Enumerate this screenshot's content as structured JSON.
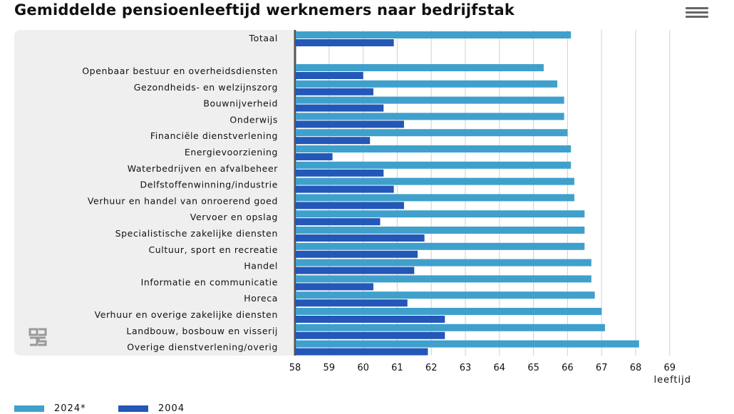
{
  "title": "Gemiddelde pensioenleeftijd werknemers naar bedrijfstak",
  "menu": {
    "icon": "hamburger-menu-icon"
  },
  "logo": {
    "icon": "cbs-logo-icon"
  },
  "colors": {
    "s2024": "#3fa0cc",
    "s2004": "#2357b8",
    "panel": "#efefef",
    "axis": "#555555",
    "grid": "#cfcfcf"
  },
  "chart_data": {
    "type": "bar",
    "orientation": "horizontal",
    "title": "Gemiddelde pensioenleeftijd werknemers naar bedrijfstak",
    "xlabel": "leeftijd",
    "ylabel": "",
    "xlim": [
      58,
      69
    ],
    "xticks": [
      "58",
      "59",
      "60",
      "61",
      "62",
      "63",
      "64",
      "65",
      "66",
      "67",
      "68",
      "69"
    ],
    "grid": true,
    "legend_position": "bottom-left",
    "categories": [
      "Totaal",
      "Openbaar bestuur en overheidsdiensten",
      "Gezondheids- en welzijnszorg",
      "Bouwnijverheid",
      "Onderwijs",
      "Financiële dienstverlening",
      "Energievoorziening",
      "Waterbedrijven en afvalbeheer",
      "Delfstoffenwinning/industrie",
      "Verhuur en handel van onroerend goed",
      "Vervoer en opslag",
      "Specialistische zakelijke diensten",
      "Cultuur, sport en recreatie",
      "Handel",
      "Informatie en communicatie",
      "Horeca",
      "Verhuur en overige zakelijke diensten",
      "Landbouw, bosbouw en visserij",
      "Overige dienstverlening/overig"
    ],
    "series": [
      {
        "name": "2024*",
        "values": [
          66.1,
          65.3,
          65.7,
          65.9,
          65.9,
          66.0,
          66.1,
          66.1,
          66.2,
          66.2,
          66.5,
          66.5,
          66.5,
          66.7,
          66.7,
          66.8,
          67.0,
          67.1,
          68.1
        ]
      },
      {
        "name": "2004",
        "values": [
          60.9,
          60.0,
          60.3,
          60.6,
          61.2,
          60.2,
          59.1,
          60.6,
          60.9,
          61.2,
          60.5,
          61.8,
          61.6,
          61.5,
          60.3,
          61.3,
          62.4,
          62.4,
          61.9
        ]
      }
    ]
  }
}
